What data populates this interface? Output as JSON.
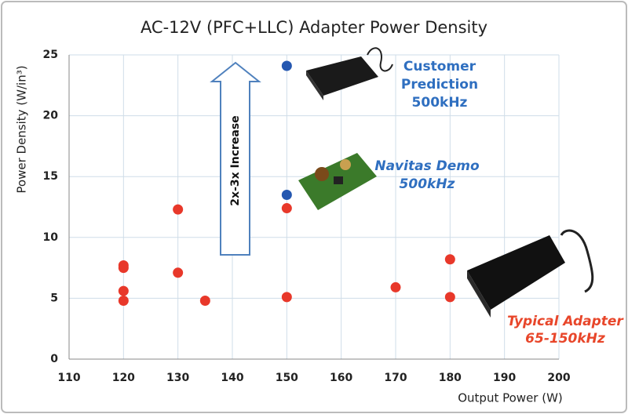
{
  "chart_data": {
    "type": "scatter",
    "title": "AC-12V (PFC+LLC) Adapter Power Density",
    "x_label": "Output Power (W)",
    "y_label": "Power Density (W/in³)",
    "xlim": [
      110,
      200
    ],
    "xticks": [
      110,
      120,
      130,
      140,
      150,
      160,
      170,
      180,
      190,
      200
    ],
    "ylim": [
      0,
      25
    ],
    "yticks": [
      0,
      5,
      10,
      15,
      20,
      25
    ],
    "grid": true,
    "series": [
      {
        "color": "#e8382a",
        "x": [
          120,
          120,
          120,
          120,
          130,
          130,
          135,
          150,
          150,
          170,
          180,
          180
        ],
        "values": [
          7.7,
          7.5,
          5.6,
          4.8,
          12.3,
          7.1,
          4.8,
          12.4,
          5.1,
          5.9,
          8.2,
          5.1
        ]
      },
      {
        "color": "#2457b0",
        "x": [
          150,
          150
        ],
        "values": [
          24.1,
          13.5
        ]
      }
    ],
    "annotations": [
      {
        "lines": [
          "Customer",
          "Prediction",
          "500kHz"
        ],
        "color": "#2f6fc0",
        "italic": false
      },
      {
        "lines": [
          "Navitas Demo",
          "500kHz"
        ],
        "color": "#2f6fc0",
        "italic": true
      },
      {
        "lines": [
          "Typical Adapter",
          "65-150kHz"
        ],
        "color": "#e8462a",
        "italic": true
      },
      {
        "lines": [
          "2x-3x Increase"
        ],
        "color": "#111111",
        "italic": false
      }
    ]
  }
}
